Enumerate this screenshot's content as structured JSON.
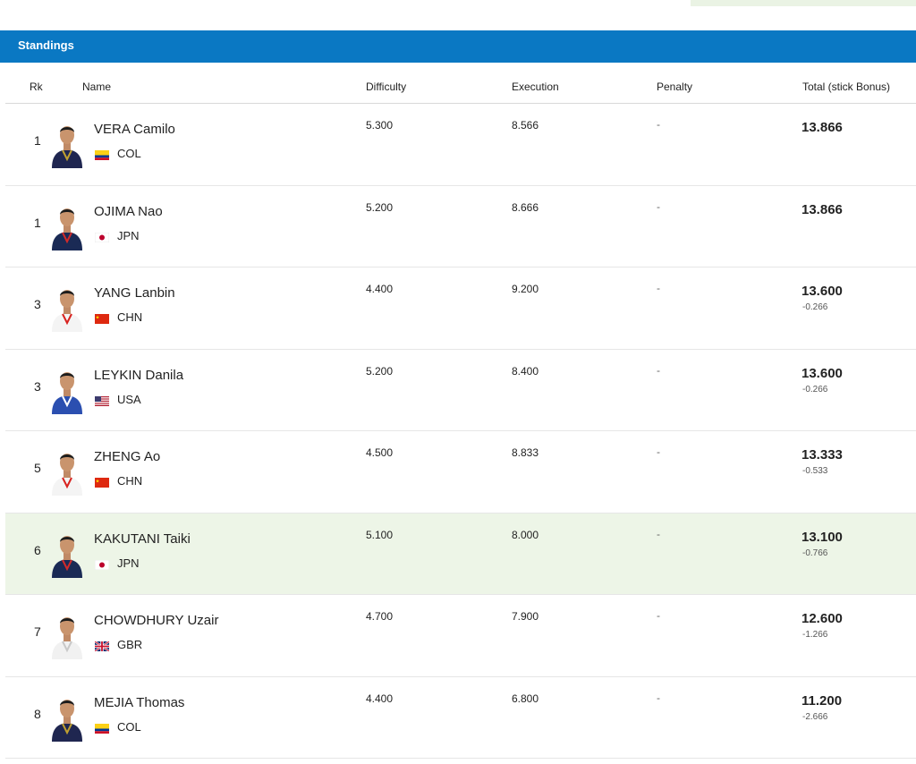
{
  "header": {
    "title": "Standings"
  },
  "columns": {
    "rk": "Rk",
    "name": "Name",
    "difficulty": "Difficulty",
    "execution": "Execution",
    "penalty": "Penalty",
    "total": "Total (stick Bonus)"
  },
  "colors": {
    "header_bg": "#0a78c3",
    "highlight_bg": "#edf5e7"
  },
  "rows": [
    {
      "rk": "1",
      "name": "VERA Camilo",
      "country": "COL",
      "flag": "col-flag-icon",
      "difficulty": "5.300",
      "execution": "8.566",
      "penalty": "-",
      "total": "13.866",
      "bonus": "",
      "kit": "navy",
      "highlight": false
    },
    {
      "rk": "1",
      "name": "OJIMA Nao",
      "country": "JPN",
      "flag": "jpn-flag-icon",
      "difficulty": "5.200",
      "execution": "8.666",
      "penalty": "-",
      "total": "13.866",
      "bonus": "",
      "kit": "navy-red",
      "highlight": false
    },
    {
      "rk": "3",
      "name": "YANG Lanbin",
      "country": "CHN",
      "flag": "chn-flag-icon",
      "difficulty": "4.400",
      "execution": "9.200",
      "penalty": "-",
      "total": "13.600",
      "bonus": "-0.266",
      "kit": "white-red",
      "highlight": false
    },
    {
      "rk": "3",
      "name": "LEYKIN Danila",
      "country": "USA",
      "flag": "usa-flag-icon",
      "difficulty": "5.200",
      "execution": "8.400",
      "penalty": "-",
      "total": "13.600",
      "bonus": "-0.266",
      "kit": "blue",
      "highlight": false
    },
    {
      "rk": "5",
      "name": "ZHENG Ao",
      "country": "CHN",
      "flag": "chn-flag-icon",
      "difficulty": "4.500",
      "execution": "8.833",
      "penalty": "-",
      "total": "13.333",
      "bonus": "-0.533",
      "kit": "white-red",
      "highlight": false
    },
    {
      "rk": "6",
      "name": "KAKUTANI Taiki",
      "country": "JPN",
      "flag": "jpn-flag-icon",
      "difficulty": "5.100",
      "execution": "8.000",
      "penalty": "-",
      "total": "13.100",
      "bonus": "-0.766",
      "kit": "navy-red",
      "highlight": true
    },
    {
      "rk": "7",
      "name": "CHOWDHURY Uzair",
      "country": "GBR",
      "flag": "gbr-flag-icon",
      "difficulty": "4.700",
      "execution": "7.900",
      "penalty": "-",
      "total": "12.600",
      "bonus": "-1.266",
      "kit": "white",
      "highlight": false
    },
    {
      "rk": "8",
      "name": "MEJIA Thomas",
      "country": "COL",
      "flag": "col-flag-icon",
      "difficulty": "4.400",
      "execution": "6.800",
      "penalty": "-",
      "total": "11.200",
      "bonus": "-2.666",
      "kit": "navy",
      "highlight": false
    }
  ]
}
